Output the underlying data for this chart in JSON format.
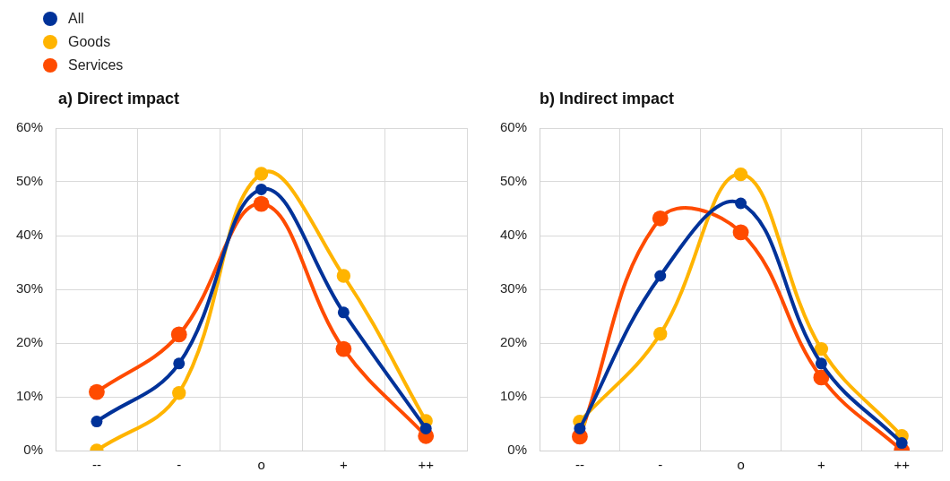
{
  "chart_data": [
    {
      "type": "line",
      "title": "a) Direct impact",
      "categories": [
        "--",
        "-",
        "o",
        "+",
        "++"
      ],
      "legend": "top left",
      "grid": true,
      "marker": "circle",
      "line_style": "solid",
      "ylim": [
        0,
        60
      ],
      "yticks": [
        {
          "value": 0,
          "label": "0%"
        },
        {
          "value": 10,
          "label": "10%"
        },
        {
          "value": 20,
          "label": "20%"
        },
        {
          "value": 30,
          "label": "30%"
        },
        {
          "value": 40,
          "label": "40%"
        },
        {
          "value": 50,
          "label": "50%"
        },
        {
          "value": 60,
          "label": "60%"
        }
      ],
      "series": [
        {
          "name": "All",
          "color": "#003299",
          "values": [
            5.4,
            16.2,
            48.6,
            25.7,
            4.1
          ]
        },
        {
          "name": "Goods",
          "color": "#ffb400",
          "values": [
            0,
            10.7,
            51.5,
            32.5,
            5.5
          ]
        },
        {
          "name": "Services",
          "color": "#ff4b00",
          "values": [
            10.9,
            21.6,
            45.9,
            18.9,
            2.7
          ]
        }
      ]
    },
    {
      "type": "line",
      "title": "b) Indirect impact",
      "categories": [
        "--",
        "-",
        "o",
        "+",
        "++"
      ],
      "grid": true,
      "marker": "circle",
      "line_style": "solid",
      "ylim": [
        0,
        60
      ],
      "yticks": [
        {
          "value": 0,
          "label": "0%"
        },
        {
          "value": 10,
          "label": "10%"
        },
        {
          "value": 20,
          "label": "20%"
        },
        {
          "value": 30,
          "label": "30%"
        },
        {
          "value": 40,
          "label": "40%"
        },
        {
          "value": 50,
          "label": "50%"
        },
        {
          "value": 60,
          "label": "60%"
        }
      ],
      "series": [
        {
          "color": "#003299",
          "values": [
            4.1,
            32.5,
            46.0,
            16.2,
            1.4
          ]
        },
        {
          "color": "#ffb400",
          "values": [
            5.4,
            21.7,
            51.4,
            18.9,
            2.7
          ]
        },
        {
          "color": "#ff4b00",
          "values": [
            2.6,
            43.2,
            40.6,
            13.6,
            0
          ]
        }
      ]
    }
  ]
}
